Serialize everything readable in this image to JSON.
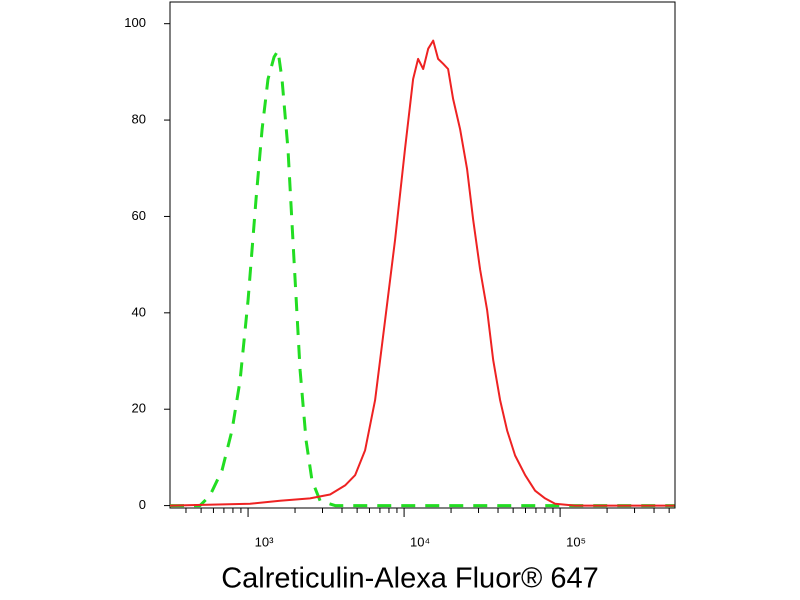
{
  "chart_data": {
    "type": "line",
    "x_label": "Calreticulin-Alexa Fluor® 647",
    "xscale": "log",
    "xlim": [
      316,
      545000
    ],
    "xticks": [
      {
        "value": 1000,
        "label": "10³"
      },
      {
        "value": 10000,
        "label": "10⁴"
      },
      {
        "value": 100000,
        "label": "10⁵"
      }
    ],
    "xminor_ticks": [
      400,
      500,
      600,
      700,
      800,
      900,
      2000,
      3000,
      4000,
      5000,
      6000,
      7000,
      8000,
      9000,
      20000,
      30000,
      40000,
      50000,
      60000,
      70000,
      80000,
      90000,
      200000,
      300000,
      400000,
      500000
    ],
    "ylim": [
      -0.5,
      104.5
    ],
    "yticks": [
      0,
      20,
      40,
      60,
      80,
      100
    ],
    "series": [
      {
        "color": "#22dd22",
        "dashed": true,
        "x": [
          316,
          492,
          570,
          681,
          789,
          889,
          1000,
          1125,
          1230,
          1343,
          1468,
          1556,
          1651,
          1804,
          1971,
          2154,
          2354,
          2571,
          2897,
          3614,
          540000
        ],
        "values": [
          0,
          0,
          2.1,
          7.3,
          15.6,
          26,
          42.7,
          63.5,
          78.1,
          88.5,
          93.1,
          94.4,
          88.5,
          73.9,
          51,
          28.1,
          13.5,
          5.2,
          1,
          0,
          0
        ]
      },
      {
        "color": "#ee2222",
        "dashed": false,
        "x": [
          316,
          1030,
          1603,
          2494,
          3357,
          4188,
          4853,
          5623,
          6518,
          7554,
          8754,
          10140,
          11420,
          12300,
          13250,
          14270,
          15360,
          16530,
          17780,
          19140,
          20600,
          22860,
          25350,
          27680,
          30690,
          34040,
          37230,
          41250,
          45710,
          51500,
          59700,
          69180,
          80170,
          92900,
          124700,
          540000
        ],
        "values": [
          0,
          0.4,
          1,
          1.5,
          2.3,
          4.2,
          6.3,
          11.5,
          21.9,
          38.5,
          55.2,
          74,
          88.5,
          92.7,
          90.6,
          94.8,
          96.5,
          92.7,
          91.7,
          90.6,
          84.4,
          78.1,
          69.8,
          59.4,
          49,
          40.6,
          30.2,
          21.9,
          15.6,
          10.4,
          6.3,
          3.1,
          1.5,
          0.4,
          0,
          0
        ]
      }
    ]
  }
}
